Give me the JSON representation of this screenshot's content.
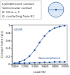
{
  "chart_data": {
    "type": "line",
    "annotations": [
      "Cylinder/cone contact",
      "Semicircular contact",
      "R: 10 m = 1",
      "Q: contacting from R2"
    ],
    "x_label": "Load (N)",
    "y_label": "Contact force ratio",
    "x": [
      1000,
      1100,
      1200,
      1300,
      1400,
      1500,
      1600,
      1700,
      1800,
      1900,
      2000
    ],
    "series": [
      {
        "name": "GE/95",
        "color": "#1f4e9c",
        "marker": "circle",
        "values": [
          0.02,
          0.05,
          0.1,
          0.2,
          0.35,
          0.55,
          0.72,
          0.85,
          0.92,
          0.96,
          0.98
        ]
      },
      {
        "name": "Noncompliance",
        "color": "#1f4e9c",
        "marker": "square",
        "values": [
          0.01,
          0.01,
          0.02,
          0.02,
          0.03,
          0.03,
          0.04,
          0.04,
          0.05,
          0.05,
          0.05
        ]
      }
    ],
    "xlim": [
      950,
      2050
    ],
    "xticks": [
      1000,
      1200,
      1400,
      1600,
      1800,
      2000
    ],
    "ylim": [
      0,
      1
    ],
    "yticks": [
      0,
      0.2,
      0.4,
      0.6,
      0.8,
      1
    ],
    "grid": false
  }
}
